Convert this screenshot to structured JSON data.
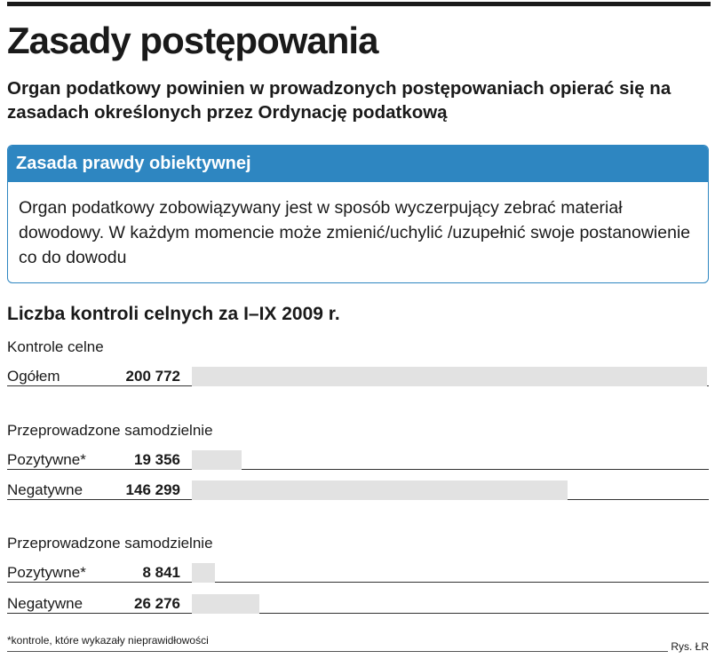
{
  "header": {
    "title": "Zasady postępowania",
    "subtitle": "Organ podatkowy powinien w prowadzonych postępowaniach opierać się na zasadach określonych przez Ordynację podatkową"
  },
  "principle_box": {
    "heading": "Zasada prawdy obiektywnej",
    "body": "Organ podatkowy zobowiązywany jest w sposób wyczerpujący zebrać materiał dowodowy. W każdym momencie może zmienić/uchylić /uzupełnić swoje postanowienie co do dowodu",
    "color": "#2e86c1"
  },
  "chart_data": {
    "type": "bar",
    "title": "Liczba kontroli celnych za I–IX 2009 r.",
    "bar_color": "#e2e2e2",
    "xlim": [
      0,
      200772
    ],
    "groups": [
      {
        "label": "Kontrole celne",
        "rows": [
          {
            "label": "Ogółem",
            "value": 200772,
            "value_text": "200 772"
          }
        ]
      },
      {
        "label": "Przeprowadzone samodzielnie",
        "rows": [
          {
            "label": "Pozytywne*",
            "value": 19356,
            "value_text": "19 356"
          },
          {
            "label": "Negatywne",
            "value": 146299,
            "value_text": "146 299"
          }
        ]
      },
      {
        "label": "Przeprowadzone samodzielnie",
        "rows": [
          {
            "label": "Pozytywne*",
            "value": 8841,
            "value_text": "8 841"
          },
          {
            "label": "Negatywne",
            "value": 26276,
            "value_text": "26 276"
          }
        ]
      }
    ]
  },
  "footer": {
    "footnote": "*kontrole, które wykazały nieprawidłowości",
    "credit": "Rys. ŁR"
  }
}
